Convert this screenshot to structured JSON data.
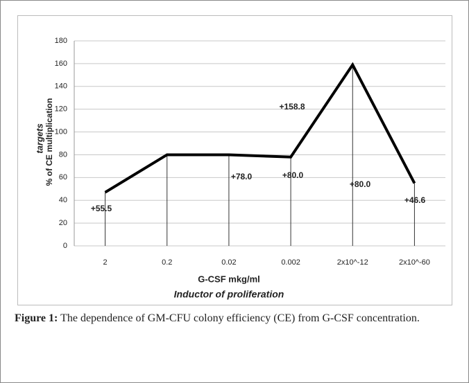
{
  "chart_data": {
    "type": "line",
    "categories": [
      "2",
      "0.2",
      "0.02",
      "0.002",
      "2x10^-12",
      "2x10^-60"
    ],
    "values": [
      47,
      80,
      80,
      78,
      159,
      55
    ],
    "color": "#000000",
    "ylim": [
      0,
      180
    ],
    "yticks": [
      0,
      20,
      40,
      60,
      80,
      100,
      120,
      140,
      160,
      180
    ],
    "grid": true,
    "ylabel": [
      "targets",
      "% of CE multiplication"
    ],
    "xlabel": [
      "G-CSF  mkg/ml",
      "Inductor of proliferation"
    ],
    "annotations": [
      "+55.5",
      "+78.0",
      "+80.0",
      "+158.8",
      "+80.0",
      "+46.6"
    ]
  },
  "caption": {
    "label": "Figure 1:",
    "text": "The dependence of GM-CFU colony efficiency (CE) from G-CSF concentration."
  }
}
